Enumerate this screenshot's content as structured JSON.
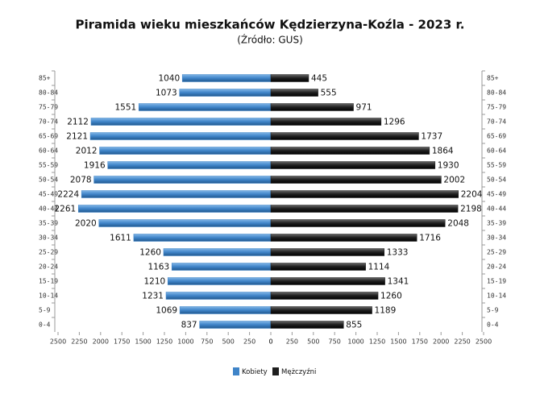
{
  "chart_data": {
    "type": "bar",
    "title": "Piramida wieku mieszkańców Kędzierzyna-Koźla - 2023 r.",
    "subtitle": "(Źródło: GUS)",
    "categories": [
      "85+",
      "80-84",
      "75-79",
      "70-74",
      "65-69",
      "60-64",
      "55-59",
      "50-54",
      "45-49",
      "40-44",
      "35-39",
      "30-34",
      "25-29",
      "20-24",
      "15-19",
      "10-14",
      "5-9",
      "0-4"
    ],
    "series": [
      {
        "name": "Kobiety",
        "color": "#3f84c8",
        "values": [
          1040,
          1073,
          1551,
          2112,
          2121,
          2012,
          1916,
          2078,
          2224,
          2261,
          2020,
          1611,
          1260,
          1163,
          1210,
          1231,
          1069,
          837
        ]
      },
      {
        "name": "Mężczyźni",
        "color": "#1e1e1e",
        "values": [
          445,
          555,
          971,
          1296,
          1737,
          1864,
          1930,
          2002,
          2204,
          2198,
          2048,
          1716,
          1333,
          1114,
          1341,
          1260,
          1189,
          855
        ]
      }
    ],
    "xlim": [
      0,
      2500
    ],
    "xticks": [
      0,
      250,
      500,
      750,
      1000,
      1250,
      1500,
      1750,
      2000,
      2250,
      2500
    ]
  }
}
